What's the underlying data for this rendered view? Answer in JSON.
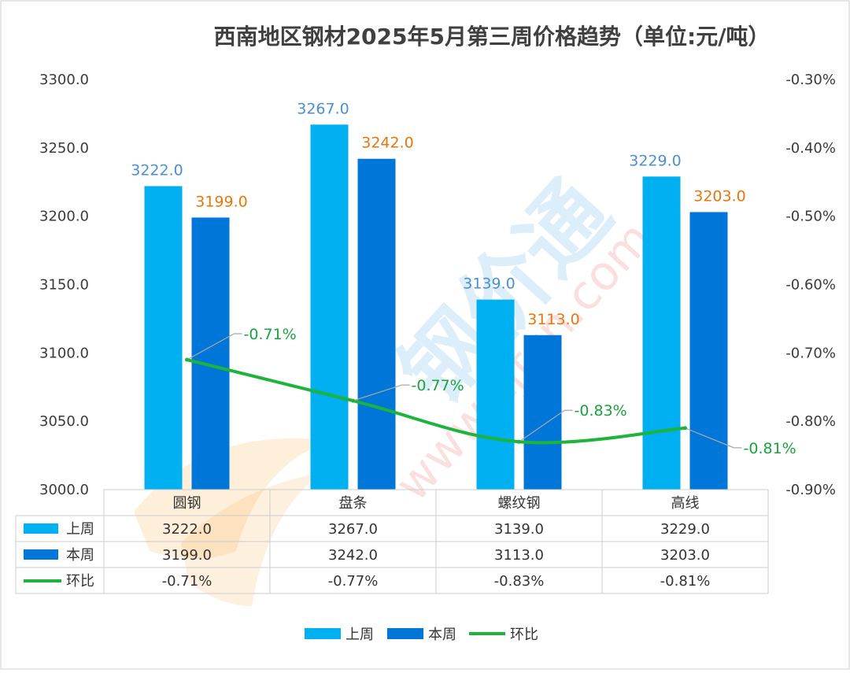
{
  "colors": {
    "last_week": "#00b0f0",
    "this_week": "#0077d8",
    "mom": "#1cb43a",
    "label_last_week": "#4a8fd6",
    "label_this_week": "#e8760c",
    "label_mom": "#1aa33f"
  },
  "chart_data": {
    "type": "bar",
    "title": "西南地区钢材2025年5月第三周价格趋势（单位:元/吨）",
    "categories": [
      "圆钢",
      "盘条",
      "螺纹钢",
      "高线"
    ],
    "series": [
      {
        "name": "上周",
        "type": "bar",
        "axis": "left",
        "values": [
          3222.0,
          3267.0,
          3139.0,
          3229.0
        ],
        "labels": [
          "3222.0",
          "3267.0",
          "3139.0",
          "3229.0"
        ]
      },
      {
        "name": "本周",
        "type": "bar",
        "axis": "left",
        "values": [
          3199.0,
          3242.0,
          3113.0,
          3203.0
        ],
        "labels": [
          "3199.0",
          "3242.0",
          "3113.0",
          "3203.0"
        ]
      },
      {
        "name": "环比",
        "type": "line",
        "axis": "right",
        "values": [
          -0.71,
          -0.77,
          -0.83,
          -0.81
        ],
        "labels": [
          "-0.71%",
          "-0.77%",
          "-0.83%",
          "-0.81%"
        ]
      }
    ],
    "y_left": {
      "range": [
        3000,
        3300
      ],
      "ticks": [
        "3300.0",
        "3250.0",
        "3200.0",
        "3150.0",
        "3100.0",
        "3050.0",
        "3000.0"
      ]
    },
    "y_right": {
      "range": [
        -0.9,
        -0.3
      ],
      "ticks": [
        "-0.30%",
        "-0.40%",
        "-0.50%",
        "-0.60%",
        "-0.70%",
        "-0.80%",
        "-0.90%"
      ]
    },
    "grid": false,
    "data_table": true,
    "legend": "bottom"
  }
}
